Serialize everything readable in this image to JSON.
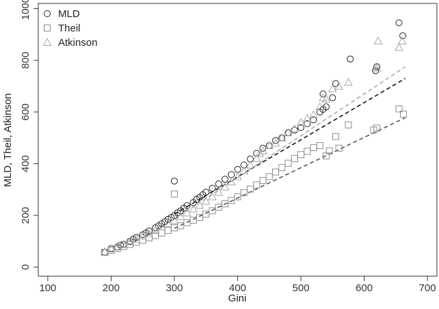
{
  "chart_data": {
    "type": "scatter",
    "xlabel": "Gini",
    "ylabel": "MLD, Theil, Atkinson",
    "xlim": [
      85,
      715
    ],
    "ylim": [
      -35,
      1020
    ],
    "x_ticks": [
      100,
      200,
      300,
      400,
      500,
      600,
      700
    ],
    "y_ticks": [
      0,
      200,
      400,
      600,
      800,
      1000
    ],
    "grid": false,
    "legend_position": "top-left",
    "series": [
      {
        "name": "MLD",
        "marker": "circle",
        "color": "#222222",
        "fit_line": {
          "x": [
            300,
            665
          ],
          "y": [
            205,
            730
          ],
          "color": "#111111"
        },
        "points": [
          [
            190,
            58
          ],
          [
            200,
            72
          ],
          [
            210,
            78
          ],
          [
            215,
            85
          ],
          [
            220,
            88
          ],
          [
            230,
            100
          ],
          [
            235,
            108
          ],
          [
            240,
            115
          ],
          [
            250,
            125
          ],
          [
            255,
            132
          ],
          [
            260,
            140
          ],
          [
            270,
            152
          ],
          [
            275,
            160
          ],
          [
            280,
            168
          ],
          [
            285,
            176
          ],
          [
            290,
            185
          ],
          [
            295,
            192
          ],
          [
            300,
            200
          ],
          [
            300,
            333
          ],
          [
            305,
            210
          ],
          [
            310,
            218
          ],
          [
            315,
            228
          ],
          [
            320,
            238
          ],
          [
            330,
            250
          ],
          [
            335,
            262
          ],
          [
            340,
            270
          ],
          [
            345,
            280
          ],
          [
            350,
            290
          ],
          [
            360,
            305
          ],
          [
            370,
            322
          ],
          [
            380,
            340
          ],
          [
            390,
            358
          ],
          [
            400,
            378
          ],
          [
            410,
            395
          ],
          [
            420,
            418
          ],
          [
            430,
            440
          ],
          [
            440,
            460
          ],
          [
            450,
            470
          ],
          [
            460,
            490
          ],
          [
            470,
            500
          ],
          [
            480,
            520
          ],
          [
            490,
            530
          ],
          [
            500,
            540
          ],
          [
            510,
            555
          ],
          [
            520,
            570
          ],
          [
            530,
            600
          ],
          [
            535,
            610
          ],
          [
            535,
            670
          ],
          [
            540,
            620
          ],
          [
            550,
            655
          ],
          [
            555,
            710
          ],
          [
            578,
            805
          ],
          [
            618,
            760
          ],
          [
            620,
            775
          ],
          [
            655,
            945
          ],
          [
            661,
            895
          ]
        ]
      },
      {
        "name": "Theil",
        "marker": "square",
        "color": "#8c8c8c",
        "fit_line": {
          "x": [
            300,
            665
          ],
          "y": [
            150,
            578
          ],
          "color": "#555555"
        },
        "points": [
          [
            190,
            57
          ],
          [
            200,
            65
          ],
          [
            210,
            72
          ],
          [
            220,
            80
          ],
          [
            230,
            88
          ],
          [
            240,
            96
          ],
          [
            250,
            104
          ],
          [
            260,
            113
          ],
          [
            270,
            122
          ],
          [
            280,
            132
          ],
          [
            290,
            142
          ],
          [
            300,
            152
          ],
          [
            300,
            283
          ],
          [
            310,
            160
          ],
          [
            320,
            172
          ],
          [
            330,
            182
          ],
          [
            340,
            192
          ],
          [
            350,
            205
          ],
          [
            360,
            218
          ],
          [
            370,
            232
          ],
          [
            380,
            245
          ],
          [
            390,
            258
          ],
          [
            400,
            272
          ],
          [
            410,
            288
          ],
          [
            420,
            302
          ],
          [
            430,
            318
          ],
          [
            440,
            335
          ],
          [
            450,
            350
          ],
          [
            460,
            368
          ],
          [
            470,
            385
          ],
          [
            480,
            402
          ],
          [
            490,
            420
          ],
          [
            500,
            435
          ],
          [
            510,
            448
          ],
          [
            520,
            462
          ],
          [
            530,
            470
          ],
          [
            540,
            430
          ],
          [
            545,
            450
          ],
          [
            555,
            505
          ],
          [
            560,
            460
          ],
          [
            575,
            550
          ],
          [
            615,
            530
          ],
          [
            620,
            538
          ],
          [
            655,
            612
          ],
          [
            662,
            592
          ]
        ]
      },
      {
        "name": "Atkinson",
        "marker": "triangle",
        "color": "#a6a6a6",
        "fit_line": {
          "x": [
            300,
            665
          ],
          "y": [
            185,
            775
          ],
          "color": "#aaaaaa"
        },
        "points": [
          [
            190,
            60
          ],
          [
            200,
            70
          ],
          [
            210,
            78
          ],
          [
            220,
            88
          ],
          [
            230,
            98
          ],
          [
            240,
            108
          ],
          [
            250,
            120
          ],
          [
            260,
            130
          ],
          [
            270,
            142
          ],
          [
            280,
            155
          ],
          [
            290,
            168
          ],
          [
            300,
            180
          ],
          [
            310,
            195
          ],
          [
            320,
            210
          ],
          [
            330,
            225
          ],
          [
            340,
            240
          ],
          [
            350,
            255
          ],
          [
            360,
            272
          ],
          [
            370,
            290
          ],
          [
            380,
            310
          ],
          [
            390,
            330
          ],
          [
            400,
            350
          ],
          [
            410,
            372
          ],
          [
            420,
            395
          ],
          [
            430,
            420
          ],
          [
            435,
            440
          ],
          [
            440,
            450
          ],
          [
            450,
            470
          ],
          [
            460,
            480
          ],
          [
            470,
            500
          ],
          [
            480,
            520
          ],
          [
            490,
            535
          ],
          [
            500,
            560
          ],
          [
            510,
            575
          ],
          [
            520,
            590
          ],
          [
            530,
            620
          ],
          [
            535,
            655
          ],
          [
            540,
            650
          ],
          [
            550,
            690
          ],
          [
            560,
            700
          ],
          [
            575,
            715
          ],
          [
            620,
            770
          ],
          [
            622,
            875
          ],
          [
            655,
            850
          ],
          [
            660,
            875
          ]
        ]
      }
    ]
  }
}
